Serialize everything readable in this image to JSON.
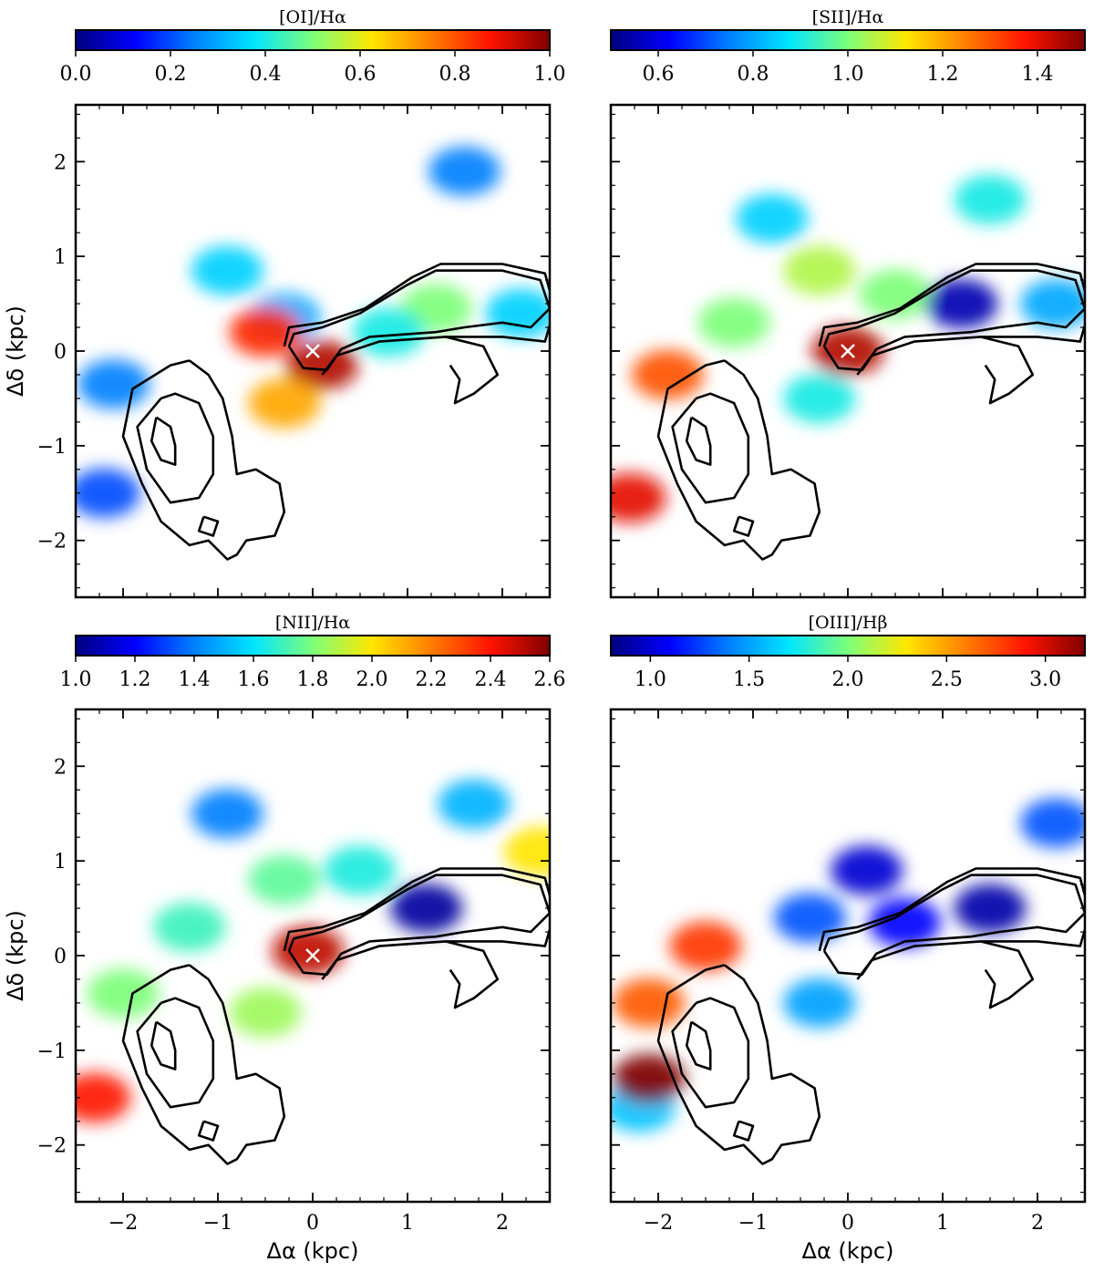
{
  "figure": {
    "x_axis_label": "Δα (kpc)",
    "y_axis_label": "Δδ (kpc)"
  },
  "colors": {
    "colormap": [
      "#00007f",
      "#0000ff",
      "#0080ff",
      "#00e5ff",
      "#7dff7a",
      "#ffe600",
      "#ff7d00",
      "#ff1300",
      "#7f0000"
    ],
    "nucleus_marker": "#ffffff",
    "contour": "#000000"
  },
  "chart_data": [
    {
      "type": "heatmap",
      "panel": "top-left",
      "colorbar_label": "[OI]/Hα",
      "colorbar_range": [
        0.0,
        1.0
      ],
      "colorbar_ticks": [
        "0.0",
        "0.2",
        "0.4",
        "0.6",
        "0.8",
        "1.0"
      ],
      "xlim": [
        -2.5,
        2.5
      ],
      "ylim": [
        -2.6,
        2.6
      ],
      "x_ticks": [
        "−2",
        "−1",
        "0",
        "1",
        "2"
      ],
      "y_ticks": [
        "−2",
        "−1",
        "0",
        "1",
        "2"
      ],
      "show_xticklabels": false,
      "show_yticklabels": true,
      "nucleus": [
        0,
        0
      ],
      "regions": [
        {
          "x": -0.9,
          "y": 0.85,
          "value": 0.35
        },
        {
          "x": -0.3,
          "y": 0.35,
          "value": 0.3
        },
        {
          "x": 0.1,
          "y": -0.15,
          "value": 0.95
        },
        {
          "x": -0.5,
          "y": 0.2,
          "value": 0.85
        },
        {
          "x": -2.1,
          "y": -0.35,
          "value": 0.25
        },
        {
          "x": -2.2,
          "y": -1.5,
          "value": 0.2
        },
        {
          "x": 1.3,
          "y": 0.45,
          "value": 0.5
        },
        {
          "x": 2.2,
          "y": 0.4,
          "value": 0.35
        },
        {
          "x": 1.6,
          "y": 1.9,
          "value": 0.25
        },
        {
          "x": 0.8,
          "y": 0.2,
          "value": 0.4
        },
        {
          "x": -0.3,
          "y": -0.55,
          "value": 0.7
        }
      ]
    },
    {
      "type": "heatmap",
      "panel": "top-right",
      "colorbar_label": "[SII]/Hα",
      "colorbar_range": [
        0.5,
        1.5
      ],
      "colorbar_ticks": [
        "0.6",
        "0.8",
        "1.0",
        "1.2",
        "1.4"
      ],
      "xlim": [
        -2.5,
        2.5
      ],
      "ylim": [
        -2.6,
        2.6
      ],
      "x_ticks": [
        "−2",
        "−1",
        "0",
        "1",
        "2"
      ],
      "y_ticks": [
        "−2",
        "−1",
        "0",
        "1",
        "2"
      ],
      "show_xticklabels": false,
      "show_yticklabels": false,
      "nucleus": [
        0,
        0
      ],
      "regions": [
        {
          "x": -0.3,
          "y": 0.85,
          "value": 1.05
        },
        {
          "x": 0.5,
          "y": 0.6,
          "value": 1.0
        },
        {
          "x": -1.2,
          "y": 0.3,
          "value": 1.0
        },
        {
          "x": 0.0,
          "y": 0.0,
          "value": 1.45
        },
        {
          "x": -1.9,
          "y": -0.25,
          "value": 1.3
        },
        {
          "x": -2.3,
          "y": -1.55,
          "value": 1.4
        },
        {
          "x": 1.5,
          "y": 1.6,
          "value": 0.9
        },
        {
          "x": -0.8,
          "y": 1.4,
          "value": 0.85
        },
        {
          "x": 1.2,
          "y": 0.5,
          "value": 0.55
        },
        {
          "x": 2.2,
          "y": 0.5,
          "value": 0.8
        },
        {
          "x": -0.3,
          "y": -0.5,
          "value": 0.9
        }
      ]
    },
    {
      "type": "heatmap",
      "panel": "bottom-left",
      "colorbar_label": "[NII]/Hα",
      "colorbar_range": [
        1.0,
        2.6
      ],
      "colorbar_ticks": [
        "1.0",
        "1.2",
        "1.4",
        "1.6",
        "1.8",
        "2.0",
        "2.2",
        "2.4",
        "2.6"
      ],
      "xlim": [
        -2.5,
        2.5
      ],
      "ylim": [
        -2.6,
        2.6
      ],
      "x_ticks": [
        "−2",
        "−1",
        "0",
        "1",
        "2"
      ],
      "y_ticks": [
        "−2",
        "−1",
        "0",
        "1",
        "2"
      ],
      "show_xticklabels": true,
      "show_yticklabels": true,
      "nucleus": [
        0,
        0
      ],
      "regions": [
        {
          "x": -0.3,
          "y": 0.8,
          "value": 1.75
        },
        {
          "x": 0.5,
          "y": 0.9,
          "value": 1.65
        },
        {
          "x": -1.3,
          "y": 0.3,
          "value": 1.7
        },
        {
          "x": -0.05,
          "y": 0.05,
          "value": 2.5
        },
        {
          "x": -2.0,
          "y": -0.4,
          "value": 1.8
        },
        {
          "x": -2.3,
          "y": -1.5,
          "value": 2.4
        },
        {
          "x": 1.7,
          "y": 1.6,
          "value": 1.5
        },
        {
          "x": -0.9,
          "y": 1.5,
          "value": 1.4
        },
        {
          "x": 1.2,
          "y": 0.5,
          "value": 1.05
        },
        {
          "x": 2.4,
          "y": 1.1,
          "value": 2.0
        },
        {
          "x": -0.5,
          "y": -0.6,
          "value": 1.85
        }
      ]
    },
    {
      "type": "heatmap",
      "panel": "bottom-right",
      "colorbar_label": "[OIII]/Hβ",
      "colorbar_range": [
        0.8,
        3.2
      ],
      "colorbar_ticks": [
        "1.0",
        "1.5",
        "2.0",
        "2.5",
        "3.0"
      ],
      "xlim": [
        -2.5,
        2.5
      ],
      "ylim": [
        -2.6,
        2.6
      ],
      "x_ticks": [
        "−2",
        "−1",
        "0",
        "1",
        "2"
      ],
      "y_ticks": [
        "−2",
        "−1",
        "0",
        "1",
        "2"
      ],
      "show_xticklabels": true,
      "show_yticklabels": false,
      "nucleus": [
        0,
        0
      ],
      "regions": [
        {
          "x": 0.2,
          "y": 0.9,
          "value": 1.0
        },
        {
          "x": -0.4,
          "y": 0.4,
          "value": 1.3
        },
        {
          "x": 0.6,
          "y": 0.35,
          "value": 1.1
        },
        {
          "x": -1.5,
          "y": 0.1,
          "value": 2.8
        },
        {
          "x": -2.1,
          "y": -0.5,
          "value": 2.7
        },
        {
          "x": -2.2,
          "y": -1.6,
          "value": 1.6
        },
        {
          "x": -2.1,
          "y": -1.3,
          "value": 3.2
        },
        {
          "x": 2.2,
          "y": 1.4,
          "value": 1.3
        },
        {
          "x": 1.5,
          "y": 0.5,
          "value": 0.9
        },
        {
          "x": -0.3,
          "y": -0.5,
          "value": 1.5
        }
      ]
    }
  ]
}
